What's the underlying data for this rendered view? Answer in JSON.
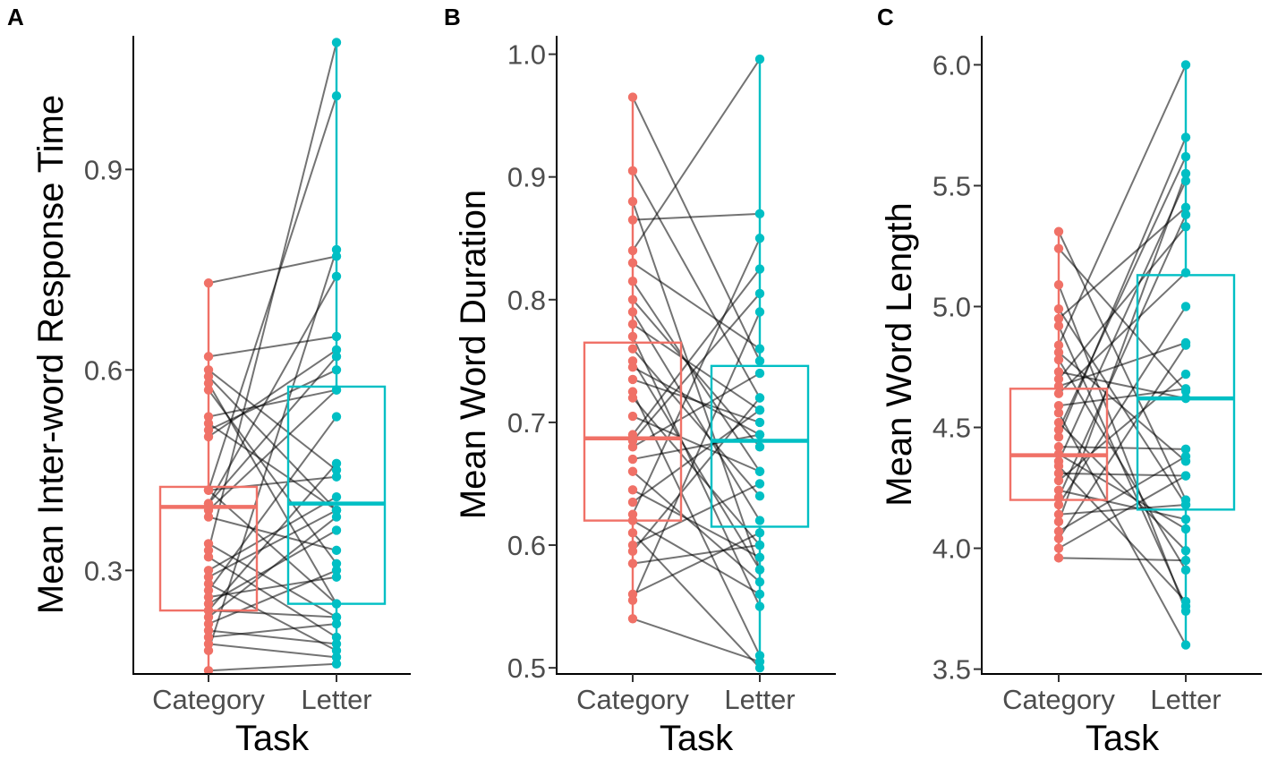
{
  "colors": {
    "category": "#f07167",
    "letter": "#00bfc4",
    "pair_line": "#000000"
  },
  "chart_data": [
    {
      "panel_label": "A",
      "type": "boxplot-paired",
      "xlabel": "Task",
      "ylabel": "Mean Inter-word Response Time",
      "categories": [
        "Category",
        "Letter"
      ],
      "ylim": [
        0.145,
        1.1
      ],
      "yticks": [
        0.3,
        0.6,
        0.9
      ],
      "ytick_labels": [
        "0.3",
        "0.6",
        "0.9"
      ],
      "boxes": [
        {
          "name": "Category",
          "q1": 0.24,
          "median": 0.395,
          "q3": 0.425,
          "min": 0.15,
          "max": 0.73
        },
        {
          "name": "Letter",
          "q1": 0.25,
          "median": 0.4,
          "q3": 0.575,
          "min": 0.155,
          "max": 1.09
        }
      ],
      "pairs": [
        [
          0.73,
          0.77
        ],
        [
          0.62,
          0.65
        ],
        [
          0.6,
          0.45
        ],
        [
          0.59,
          0.39
        ],
        [
          0.58,
          0.25
        ],
        [
          0.57,
          0.31
        ],
        [
          0.53,
          0.57
        ],
        [
          0.52,
          0.39
        ],
        [
          0.51,
          0.6
        ],
        [
          0.5,
          0.63
        ],
        [
          0.42,
          1.01
        ],
        [
          0.42,
          0.25
        ],
        [
          0.42,
          0.44
        ],
        [
          0.4,
          0.74
        ],
        [
          0.4,
          0.62
        ],
        [
          0.39,
          0.57
        ],
        [
          0.38,
          0.33
        ],
        [
          0.34,
          0.23
        ],
        [
          0.33,
          1.09
        ],
        [
          0.32,
          0.2
        ],
        [
          0.3,
          0.41
        ],
        [
          0.29,
          0.39
        ],
        [
          0.28,
          0.18
        ],
        [
          0.27,
          0.53
        ],
        [
          0.26,
          0.29
        ],
        [
          0.25,
          0.36
        ],
        [
          0.24,
          0.23
        ],
        [
          0.24,
          0.46
        ],
        [
          0.23,
          0.38
        ],
        [
          0.22,
          0.3
        ],
        [
          0.21,
          0.19
        ],
        [
          0.2,
          0.22
        ],
        [
          0.19,
          0.17
        ],
        [
          0.18,
          0.78
        ],
        [
          0.15,
          0.16
        ]
      ]
    },
    {
      "panel_label": "B",
      "type": "boxplot-paired",
      "xlabel": "Task",
      "ylabel": "Mean Word Duration",
      "categories": [
        "Category",
        "Letter"
      ],
      "ylim": [
        0.495,
        1.015
      ],
      "yticks": [
        0.5,
        0.6,
        0.7,
        0.8,
        0.9,
        1.0
      ],
      "ytick_labels": [
        "0.5",
        "0.6",
        "0.7",
        "0.8",
        "0.9",
        "1.0"
      ],
      "boxes": [
        {
          "name": "Category",
          "q1": 0.62,
          "median": 0.687,
          "q3": 0.765,
          "min": 0.54,
          "max": 0.965
        },
        {
          "name": "Letter",
          "q1": 0.615,
          "median": 0.685,
          "q3": 0.746,
          "min": 0.503,
          "max": 0.996
        }
      ],
      "pairs": [
        [
          0.965,
          0.75
        ],
        [
          0.905,
          0.72
        ],
        [
          0.88,
          0.58
        ],
        [
          0.865,
          0.87
        ],
        [
          0.84,
          0.996
        ],
        [
          0.83,
          0.76
        ],
        [
          0.815,
          0.66
        ],
        [
          0.8,
          0.68
        ],
        [
          0.79,
          0.62
        ],
        [
          0.78,
          0.71
        ],
        [
          0.77,
          0.55
        ],
        [
          0.76,
          0.64
        ],
        [
          0.75,
          0.58
        ],
        [
          0.745,
          0.69
        ],
        [
          0.735,
          0.7
        ],
        [
          0.725,
          0.51
        ],
        [
          0.72,
          0.6
        ],
        [
          0.705,
          0.66
        ],
        [
          0.69,
          0.825
        ],
        [
          0.685,
          0.805
        ],
        [
          0.68,
          0.74
        ],
        [
          0.67,
          0.69
        ],
        [
          0.66,
          0.57
        ],
        [
          0.645,
          0.59
        ],
        [
          0.635,
          0.71
        ],
        [
          0.625,
          0.85
        ],
        [
          0.62,
          0.56
        ],
        [
          0.61,
          0.5
        ],
        [
          0.6,
          0.65
        ],
        [
          0.595,
          0.72
        ],
        [
          0.585,
          0.6
        ],
        [
          0.56,
          0.61
        ],
        [
          0.555,
          0.79
        ],
        [
          0.54,
          0.505
        ]
      ]
    },
    {
      "panel_label": "C",
      "type": "boxplot-paired",
      "xlabel": "Task",
      "ylabel": "Mean Word Length",
      "categories": [
        "Category",
        "Letter"
      ],
      "ylim": [
        3.48,
        6.12
      ],
      "yticks": [
        3.5,
        4.0,
        4.5,
        5.0,
        5.5,
        6.0
      ],
      "ytick_labels": [
        "3.5",
        "4.0",
        "4.5",
        "5.0",
        "5.5",
        "6.0"
      ],
      "boxes": [
        {
          "name": "Category",
          "q1": 4.2,
          "median": 4.385,
          "q3": 4.66,
          "min": 3.96,
          "max": 5.32
        },
        {
          "name": "Letter",
          "q1": 4.16,
          "median": 4.62,
          "q3": 5.13,
          "min": 3.6,
          "max": 6.0
        }
      ],
      "pairs": [
        [
          5.31,
          4.2
        ],
        [
          5.24,
          4.65
        ],
        [
          5.09,
          3.74
        ],
        [
          4.99,
          4.18
        ],
        [
          4.95,
          5.41
        ],
        [
          4.92,
          3.76
        ],
        [
          4.84,
          6.0
        ],
        [
          4.81,
          4.36
        ],
        [
          4.78,
          3.91
        ],
        [
          4.73,
          4.62
        ],
        [
          4.7,
          5.33
        ],
        [
          4.67,
          4.85
        ],
        [
          4.64,
          5.14
        ],
        [
          4.59,
          4.66
        ],
        [
          4.56,
          3.6
        ],
        [
          4.52,
          3.99
        ],
        [
          4.49,
          5.62
        ],
        [
          4.46,
          5.7
        ],
        [
          4.42,
          4.41
        ],
        [
          4.39,
          4.08
        ],
        [
          4.36,
          5.52
        ],
        [
          4.34,
          3.78
        ],
        [
          4.31,
          4.3
        ],
        [
          4.28,
          4.72
        ],
        [
          4.24,
          4.12
        ],
        [
          4.21,
          5.38
        ],
        [
          4.18,
          5.0
        ],
        [
          4.14,
          4.18
        ],
        [
          4.11,
          5.55
        ],
        [
          4.07,
          4.38
        ],
        [
          4.04,
          4.84
        ],
        [
          4.0,
          4.3
        ],
        [
          3.96,
          3.95
        ]
      ]
    }
  ]
}
